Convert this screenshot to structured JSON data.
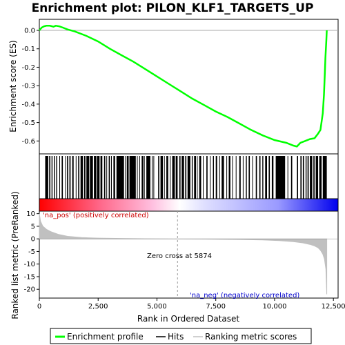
{
  "chart_data": {
    "type": "line",
    "title": "Enrichment plot: PILON_KLF1_TARGETS_UP",
    "xlabel": "Rank in Ordered Dataset",
    "ylabel_top": "Enrichment score (ES)",
    "ylabel_bottom": "Ranked list metric (PreRanked)",
    "xlim": [
      0,
      12700
    ],
    "x_ticks": [
      0,
      2500,
      5000,
      7500,
      10000,
      12500
    ],
    "x_tick_labels": [
      "0",
      "2,500",
      "5,000",
      "7,500",
      "10,000",
      "12,500"
    ],
    "es_ylim": [
      -0.67,
      0.06
    ],
    "es_ticks": [
      0.0,
      -0.1,
      -0.2,
      -0.3,
      -0.4,
      -0.5,
      -0.6
    ],
    "es_tick_labels": [
      "0.0",
      "-0.1",
      "-0.2",
      "-0.3",
      "-0.4",
      "-0.5",
      "-0.6"
    ],
    "metric_ylim": [
      -23.5,
      11
    ],
    "metric_ticks": [
      10,
      5,
      0,
      -5,
      -10,
      -15,
      -20
    ],
    "metric_tick_labels": [
      "10",
      "5",
      "0",
      "-5",
      "-10",
      "-15",
      "-20"
    ],
    "series": [
      {
        "name": "Enrichment profile",
        "color": "#00ff00",
        "x": [
          0,
          100,
          200,
          300,
          450,
          600,
          700,
          850,
          1000,
          1200,
          1500,
          2000,
          2500,
          3000,
          3500,
          4000,
          4500,
          5000,
          5500,
          6000,
          6500,
          7000,
          7500,
          8000,
          8500,
          9000,
          9500,
          10000,
          10500,
          10800,
          10950,
          11100,
          11300,
          11500,
          11700,
          11850,
          11950,
          12050,
          12100,
          12130,
          12160,
          12180,
          12200,
          12220
        ],
        "y": [
          0.0,
          0.015,
          0.022,
          0.025,
          0.025,
          0.02,
          0.025,
          0.022,
          0.015,
          0.005,
          -0.005,
          -0.03,
          -0.06,
          -0.1,
          -0.135,
          -0.17,
          -0.21,
          -0.25,
          -0.29,
          -0.33,
          -0.37,
          -0.405,
          -0.44,
          -0.47,
          -0.505,
          -0.54,
          -0.57,
          -0.595,
          -0.61,
          -0.625,
          -0.63,
          -0.61,
          -0.6,
          -0.59,
          -0.585,
          -0.56,
          -0.54,
          -0.45,
          -0.35,
          -0.25,
          -0.15,
          -0.1,
          -0.05,
          0.0
        ]
      },
      {
        "name": "Ranking metric scores",
        "color": "#c0c0c0",
        "x": [
          0,
          50,
          150,
          300,
          500,
          800,
          1200,
          1800,
          2500,
          3500,
          4500,
          5874,
          7000,
          8500,
          9500,
          10200,
          10800,
          11200,
          11500,
          11700,
          11850,
          11950,
          12050,
          12120,
          12180,
          12220
        ],
        "y": [
          10.0,
          7.0,
          5.0,
          3.8,
          2.8,
          1.8,
          1.0,
          0.5,
          0.3,
          0.15,
          0.05,
          0.0,
          -0.1,
          -0.25,
          -0.45,
          -0.7,
          -1.1,
          -1.6,
          -2.2,
          -2.8,
          -3.5,
          -4.5,
          -6.0,
          -8.0,
          -12.0,
          -22.0
        ]
      }
    ],
    "hit_segments": [
      [
        250,
        380
      ],
      [
        420,
        470
      ],
      [
        520,
        560
      ],
      [
        620,
        660
      ],
      [
        720,
        760
      ],
      [
        850,
        880
      ],
      [
        950,
        1000
      ],
      [
        1100,
        1130
      ],
      [
        1180,
        1230
      ],
      [
        1280,
        1330
      ],
      [
        1400,
        1460
      ],
      [
        1550,
        1580
      ],
      [
        1650,
        1700
      ],
      [
        1750,
        1850
      ],
      [
        1900,
        1960
      ],
      [
        2000,
        2120
      ],
      [
        2150,
        2280
      ],
      [
        2320,
        2420
      ],
      [
        2450,
        2560
      ],
      [
        2600,
        2680
      ],
      [
        2750,
        2800
      ],
      [
        2850,
        2880
      ],
      [
        2950,
        3000
      ],
      [
        3050,
        3080
      ],
      [
        3150,
        3220
      ],
      [
        3280,
        3600
      ],
      [
        3650,
        3680
      ],
      [
        3720,
        3800
      ],
      [
        3830,
        4100
      ],
      [
        4150,
        4180
      ],
      [
        4250,
        4280
      ],
      [
        4350,
        4420
      ],
      [
        4450,
        4480
      ],
      [
        4550,
        4720
      ],
      [
        4780,
        4810
      ],
      [
        4850,
        4880
      ],
      [
        5050,
        5100
      ],
      [
        5150,
        5250
      ],
      [
        5300,
        5330
      ],
      [
        5400,
        5480
      ],
      [
        5550,
        5580
      ],
      [
        5650,
        5760
      ],
      [
        5800,
        5880
      ],
      [
        5950,
        6000
      ],
      [
        6050,
        6150
      ],
      [
        6200,
        6250
      ],
      [
        6300,
        6420
      ],
      [
        6480,
        6520
      ],
      [
        6580,
        6660
      ],
      [
        6700,
        6730
      ],
      [
        6800,
        6880
      ],
      [
        6950,
        6980
      ],
      [
        7100,
        7150
      ],
      [
        7250,
        7280
      ],
      [
        7380,
        7420
      ],
      [
        7500,
        7560
      ],
      [
        7650,
        7680
      ],
      [
        7750,
        7850
      ],
      [
        7950,
        7980
      ],
      [
        8050,
        8120
      ],
      [
        8200,
        8230
      ],
      [
        8350,
        8380
      ],
      [
        8500,
        8560
      ],
      [
        8650,
        8680
      ],
      [
        8780,
        8820
      ],
      [
        8900,
        8950
      ],
      [
        9050,
        9080
      ],
      [
        9200,
        9250
      ],
      [
        9350,
        9400
      ],
      [
        9480,
        9520
      ],
      [
        9600,
        9680
      ],
      [
        9750,
        9800
      ],
      [
        9880,
        9950
      ],
      [
        10050,
        10450
      ],
      [
        10550,
        10580
      ],
      [
        10700,
        10750
      ],
      [
        10950,
        11000
      ],
      [
        11100,
        11150
      ],
      [
        11200,
        11250
      ],
      [
        11320,
        11360
      ],
      [
        11400,
        11450
      ],
      [
        11500,
        11600
      ],
      [
        11650,
        11700
      ],
      [
        11750,
        11850
      ],
      [
        11900,
        12000
      ],
      [
        12050,
        12220
      ]
    ],
    "zero_cross_x": 5874,
    "annotations": {
      "pos": "'na_pos' (positively correlated)",
      "neg": "'na_neg' (negatively correlated)",
      "zero": "Zero cross at 5874"
    },
    "legend": {
      "placement": "bottom",
      "items": [
        "Enrichment profile",
        "Hits",
        "Ranking metric scores"
      ]
    },
    "colors": {
      "profile": "#00ff00",
      "hits": "#000000",
      "metric": "#c0c0c0",
      "pos_label": "#cc0000",
      "neg_label": "#0000cc",
      "gradient_start": "#ff0000",
      "gradient_mid": "#ffffff",
      "gradient_end": "#0000ff"
    }
  }
}
